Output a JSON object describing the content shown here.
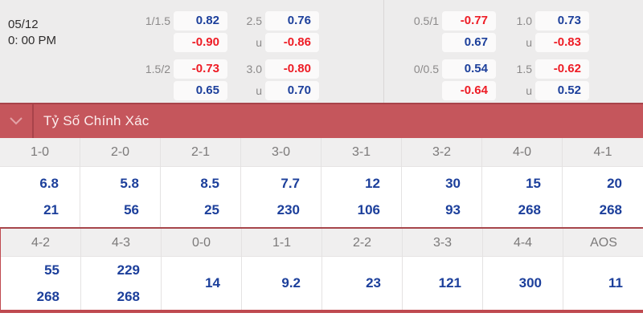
{
  "meta": {
    "date": "05/12",
    "time": "0: 00 PM"
  },
  "odds_panel": {
    "rows": [
      {
        "groups": [
          {
            "label": "1/1.5",
            "sub_label": "",
            "top": {
              "value": "0.82",
              "color": "blue"
            },
            "bottom": {
              "value": "-0.90",
              "color": "red"
            }
          },
          {
            "label": "2.5",
            "sub_label": "u",
            "top": {
              "value": "0.76",
              "color": "blue"
            },
            "bottom": {
              "value": "-0.86",
              "color": "red"
            }
          },
          {
            "label": "0.5/1",
            "sub_label": "",
            "top": {
              "value": "-0.77",
              "color": "red"
            },
            "bottom": {
              "value": "0.67",
              "color": "blue"
            }
          },
          {
            "label": "1.0",
            "sub_label": "u",
            "top": {
              "value": "0.73",
              "color": "blue"
            },
            "bottom": {
              "value": "-0.83",
              "color": "red"
            }
          }
        ]
      },
      {
        "groups": [
          {
            "label": "1.5/2",
            "sub_label": "",
            "top": {
              "value": "-0.73",
              "color": "red"
            },
            "bottom": {
              "value": "0.65",
              "color": "blue"
            }
          },
          {
            "label": "3.0",
            "sub_label": "u",
            "top": {
              "value": "-0.80",
              "color": "red"
            },
            "bottom": {
              "value": "0.70",
              "color": "blue"
            }
          },
          {
            "label": "0/0.5",
            "sub_label": "",
            "top": {
              "value": "0.54",
              "color": "blue"
            },
            "bottom": {
              "value": "-0.64",
              "color": "red"
            }
          },
          {
            "label": "1.5",
            "sub_label": "u",
            "top": {
              "value": "-0.62",
              "color": "red"
            },
            "bottom": {
              "value": "0.52",
              "color": "blue"
            }
          }
        ]
      }
    ]
  },
  "section_header": {
    "title": "Tỷ Số Chính Xác",
    "chevron_icon": "chevron-down"
  },
  "score_table": {
    "groups": [
      {
        "columns": [
          {
            "score": "1-0",
            "values": [
              "6.8",
              "21"
            ]
          },
          {
            "score": "2-0",
            "values": [
              "5.8",
              "56"
            ]
          },
          {
            "score": "2-1",
            "values": [
              "8.5",
              "25"
            ]
          },
          {
            "score": "3-0",
            "values": [
              "7.7",
              "230"
            ]
          },
          {
            "score": "3-1",
            "values": [
              "12",
              "106"
            ]
          },
          {
            "score": "3-2",
            "values": [
              "30",
              "93"
            ]
          },
          {
            "score": "4-0",
            "values": [
              "15",
              "268"
            ]
          },
          {
            "score": "4-1",
            "values": [
              "20",
              "268"
            ]
          }
        ]
      },
      {
        "columns": [
          {
            "score": "4-2",
            "values": [
              "55",
              "268"
            ]
          },
          {
            "score": "4-3",
            "values": [
              "229",
              "268"
            ]
          },
          {
            "score": "0-0",
            "values": [
              "14"
            ]
          },
          {
            "score": "1-1",
            "values": [
              "9.2"
            ]
          },
          {
            "score": "2-2",
            "values": [
              "23"
            ]
          },
          {
            "score": "3-3",
            "values": [
              "121"
            ]
          },
          {
            "score": "4-4",
            "values": [
              "300"
            ]
          },
          {
            "score": "AOS",
            "values": [
              "11"
            ]
          }
        ]
      }
    ]
  },
  "colors": {
    "value_blue": "#1c3f9b",
    "value_red": "#ee1c25",
    "bar_red": "#c5565c",
    "bar_dark_red": "#a8434a"
  }
}
